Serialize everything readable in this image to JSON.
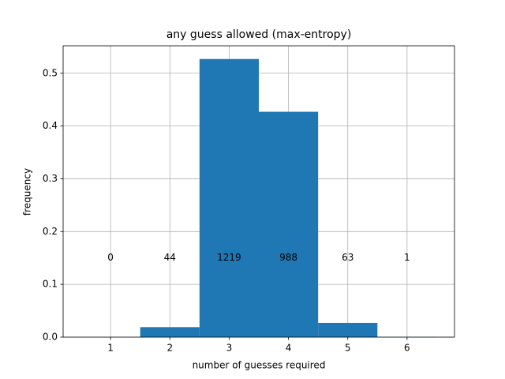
{
  "chart_data": {
    "type": "histogram",
    "title": "any guess allowed (max-entropy)",
    "xlabel": "number of guesses required",
    "ylabel": "frequency",
    "bins": [
      0.5,
      1.5,
      2.5,
      3.5,
      4.5,
      5.5,
      6.5
    ],
    "values": [
      0,
      0.019,
      0.527,
      0.427,
      0.027,
      0.0004
    ],
    "color": "#1f77b4",
    "xlim": [
      0.2,
      6.8
    ],
    "xticks": [
      1,
      2,
      3,
      4,
      5,
      6
    ],
    "ylim": [
      0,
      0.552
    ],
    "yticks": [
      {
        "value": 0,
        "label": "0.0"
      },
      0.1,
      0.2,
      0.3,
      0.4,
      0.5
    ],
    "grid": true,
    "annotations": [
      {
        "x": 1,
        "y": 0.15,
        "text": "0"
      },
      {
        "x": 2,
        "y": 0.15,
        "text": "44"
      },
      {
        "x": 3,
        "y": 0.15,
        "text": "1219"
      },
      {
        "x": 4,
        "y": 0.15,
        "text": "988"
      },
      {
        "x": 5,
        "y": 0.15,
        "text": "63"
      },
      {
        "x": 6,
        "y": 0.15,
        "text": "1"
      }
    ]
  }
}
